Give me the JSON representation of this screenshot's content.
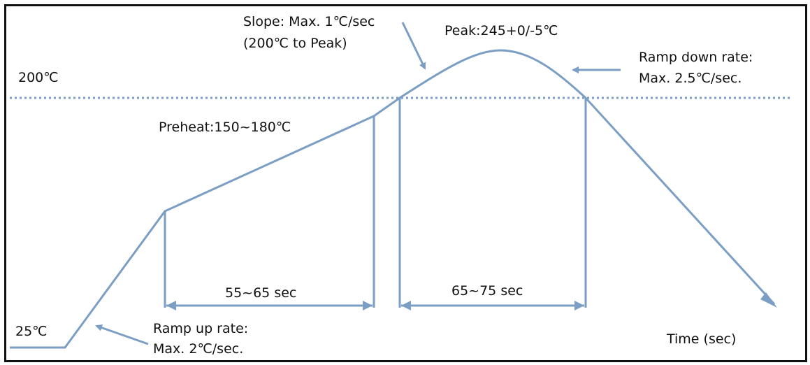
{
  "colors": {
    "curve": "#7b9ec4",
    "text": "#111111",
    "border": "#111111",
    "background": "#ffffff"
  },
  "labels": {
    "temp_200": "200℃",
    "temp_25": "25℃",
    "slope_line1": "Slope: Max. 1℃/sec",
    "slope_line2": "(200℃ to Peak)",
    "peak": "Peak:245+0/-5℃",
    "ramp_down_line1": "Ramp down rate:",
    "ramp_down_line2": "Max. 2.5℃/sec.",
    "preheat": "Preheat:150~180℃",
    "preheat_duration": "55~65 sec",
    "above_200_duration": "65~75 sec",
    "ramp_up_line1": "Ramp up rate:",
    "ramp_up_line2": "Max. 2℃/sec.",
    "time_axis": "Time (sec)"
  }
}
